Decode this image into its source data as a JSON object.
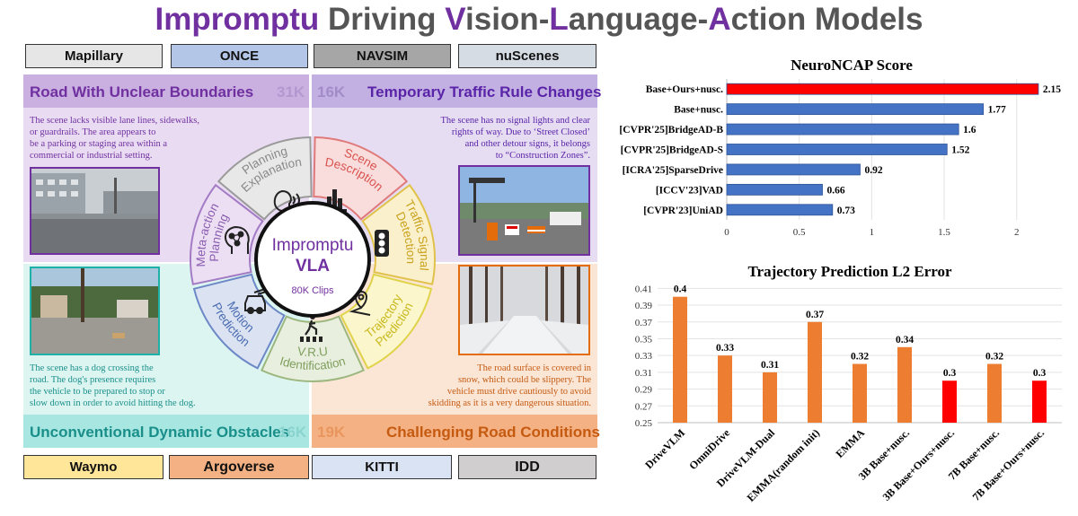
{
  "title": {
    "p1": "I",
    "p2": "mpromptu",
    "p3": " Driving ",
    "p4": "V",
    "p5": "ision-",
    "p6": "L",
    "p7": "anguage-",
    "p8": "A",
    "p9": "ction Models"
  },
  "datasets_top": [
    "Mapillary",
    "ONCE",
    "NAVSIM",
    "nuScenes"
  ],
  "datasets_bottom": [
    "Waymo",
    "Argoverse",
    "KITTI",
    "IDD"
  ],
  "colors": {
    "mapillary": "#e7e6e6",
    "once": "#b4c6e7",
    "navsim": "#a6a6a6",
    "nuscenes": "#d6dce4",
    "waymo": "#ffe699",
    "argoverse": "#f4b183",
    "kitti": "#dae3f3",
    "idd": "#d0cece",
    "purple": "#7030a0",
    "teal": "#1fb0a8",
    "orange": "#e46c0a",
    "blue_bar": "#4472c4",
    "red_bar": "#ff0000",
    "orange_bar": "#ed7d31"
  },
  "panels": {
    "tl": {
      "title": "Road With Unclear Boundaries",
      "count": "31K",
      "text": [
        "The scene lacks visible lane lines, sidewalks,",
        "or guardrails. The area appears to",
        "be a parking or staging area within a",
        "commercial or industrial setting."
      ]
    },
    "tr": {
      "title": "Temporary Traffic Rule Changes",
      "count": "16K",
      "text": [
        "The scene has no signal lights and clear",
        "rights  of way. Due to ‘Street Closed’",
        "and other detour signs, it belongs",
        "to “Construction Zones”."
      ]
    },
    "bl": {
      "title": "Unconventional Dynamic Obstacles",
      "count": "16K",
      "text": [
        "The scene has a dog crossing the",
        "road. The dog's presence requires",
        "the vehicle to be prepared to stop or",
        "slow down in order to avoid hitting the dog."
      ]
    },
    "br": {
      "title": "Challenging Road Conditions",
      "count": "19K",
      "text": [
        "The road surface is covered in",
        "snow, which could be slippery. The",
        "vehicle must drive cautiously to avoid",
        "skidding as it is a very dangerous situation."
      ]
    }
  },
  "wheel": {
    "center_title_1": "Impromptu",
    "center_title_2": "VLA",
    "center_sub": "80K Clips",
    "segments": [
      {
        "l1": "Scene",
        "l2": "Description",
        "icon": "city-icon"
      },
      {
        "l1": "Traffic Signal",
        "l2": "Detection",
        "icon": "traffic-light-icon"
      },
      {
        "l1": "Trajectory",
        "l2": "Prediction",
        "icon": "route-pin-icon"
      },
      {
        "l1": "V.R.U",
        "l2": "Identification",
        "icon": "pedestrian-crossing-icon"
      },
      {
        "l1": "Motion",
        "l2": "Prediction",
        "icon": "car-motion-icon"
      },
      {
        "l1": "Meta-action",
        "l2": "Planning",
        "icon": "network-head-icon"
      },
      {
        "l1": "Planning",
        "l2": "Explanation",
        "icon": "head-speaking-icon"
      }
    ]
  },
  "chart_data": [
    {
      "type": "bar",
      "orientation": "horizontal",
      "title": "NeuroNCAP Score",
      "categories": [
        "Base+Ours+nusc.",
        "Base+nusc.",
        "[CVPR'25]BridgeAD-B",
        "[CVPR'25]BridgeAD-S",
        "[ICRA'25]SparseDrive",
        "[ICCV'23]VAD",
        "[CVPR'23]UniAD"
      ],
      "values": [
        2.15,
        1.77,
        1.6,
        1.52,
        0.92,
        0.66,
        0.73
      ],
      "value_labels": [
        "2.15",
        "1.77",
        "1.6",
        "1.52",
        "0.92",
        "0.66",
        "0.73"
      ],
      "bar_colors": [
        "#ff0000",
        "#4472c4",
        "#4472c4",
        "#4472c4",
        "#4472c4",
        "#4472c4",
        "#4472c4"
      ],
      "xlim": [
        0,
        2.2
      ],
      "xticks": [
        0,
        0.5,
        1,
        1.5,
        2
      ],
      "xtick_labels": [
        "0",
        "0.5",
        "1",
        "1.5",
        "2"
      ]
    },
    {
      "type": "bar",
      "title": "Trajectory Prediction L2 Error",
      "categories": [
        "DriveVLM",
        "OmniDrive",
        "DriveVLM-Dual",
        "EMMA(random init)",
        "EMMA",
        "3B Base+nusc.",
        "3B Base+Ours+nusc.",
        "7B Base+nusc.",
        "7B Base+Ours+nusc."
      ],
      "values": [
        0.4,
        0.33,
        0.31,
        0.37,
        0.32,
        0.34,
        0.3,
        0.32,
        0.3
      ],
      "value_labels": [
        "0.4",
        "0.33",
        "0.31",
        "0.37",
        "0.32",
        "0.34",
        "0.3",
        "0.32",
        "0.3"
      ],
      "bar_colors": [
        "#ed7d31",
        "#ed7d31",
        "#ed7d31",
        "#ed7d31",
        "#ed7d31",
        "#ed7d31",
        "#ff0000",
        "#ed7d31",
        "#ff0000"
      ],
      "ylim": [
        0.25,
        0.42
      ],
      "yticks": [
        0.25,
        0.27,
        0.29,
        0.31,
        0.33,
        0.35,
        0.37,
        0.39,
        0.41
      ],
      "ytick_labels": [
        "0.25",
        "0.27",
        "0.29",
        "0.31",
        "0.33",
        "0.35",
        "0.37",
        "0.39",
        "0.41"
      ]
    }
  ]
}
